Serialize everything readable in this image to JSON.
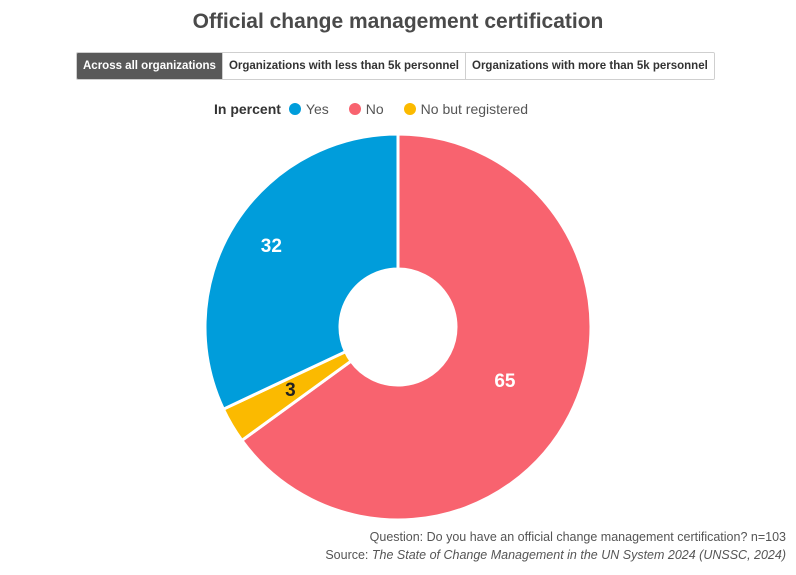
{
  "title": "Official change management certification",
  "tabs": [
    {
      "label": "Across all organizations",
      "active": true
    },
    {
      "label": "Organizations with less than 5k personnel",
      "active": false
    },
    {
      "label": "Organizations with more than 5k personnel",
      "active": false
    }
  ],
  "legend": {
    "heading": "In percent",
    "items": [
      {
        "label": "Yes",
        "color": "#009ddb"
      },
      {
        "label": "No",
        "color": "#f8636f"
      },
      {
        "label": "No but registered",
        "color": "#fbba00"
      }
    ]
  },
  "chart_data": {
    "type": "pie",
    "donut": true,
    "categories": [
      "Yes",
      "No",
      "No but registered"
    ],
    "values": [
      32,
      65,
      3
    ],
    "colors": [
      "#009ddb",
      "#f8636f",
      "#fbba00"
    ],
    "title": "Official change management certification",
    "legend_position": "top-left"
  },
  "footer": {
    "question": "Question: Do you have an official change management certification? n=103",
    "source_prefix": "Source: ",
    "source_title": "The State of Change Management in the UN System 2024 (UNSSC, 2024)"
  }
}
